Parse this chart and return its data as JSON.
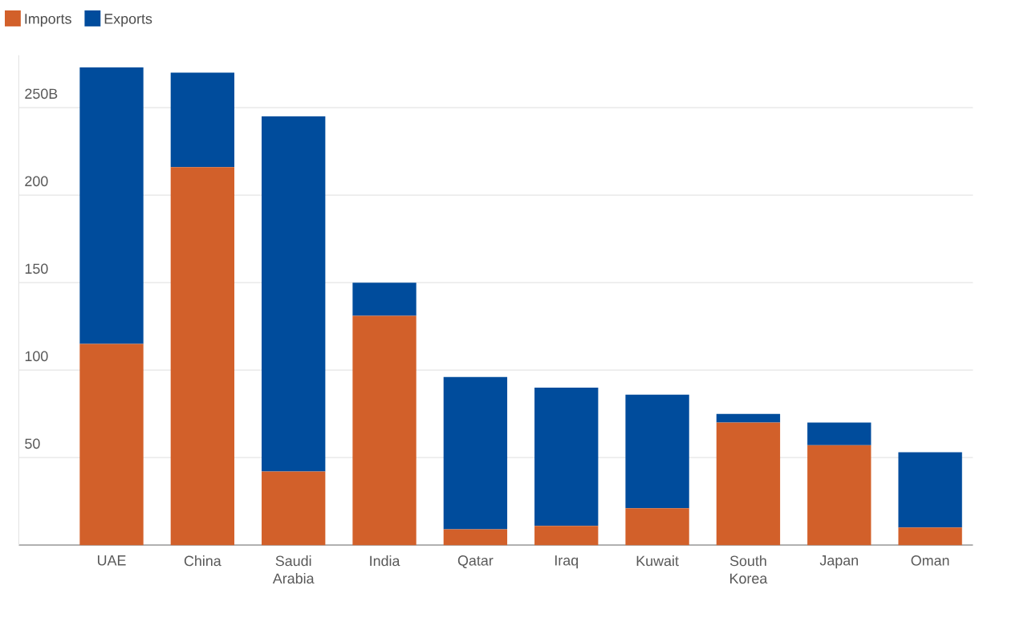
{
  "chart_data": {
    "type": "bar",
    "stacked": true,
    "categories": [
      "UAE",
      "China",
      "Saudi Arabia",
      "India",
      "Qatar",
      "Iraq",
      "Kuwait",
      "South Korea",
      "Japan",
      "Oman"
    ],
    "series": [
      {
        "name": "Imports",
        "color": "#d2602a",
        "values": [
          115,
          216,
          42,
          131,
          9,
          11,
          21,
          70,
          57,
          10
        ]
      },
      {
        "name": "Exports",
        "color": "#004c9c",
        "values": [
          158,
          54,
          203,
          19,
          87,
          79,
          65,
          5,
          13,
          43
        ]
      }
    ],
    "ylim": [
      0,
      280
    ],
    "yticks": [
      50,
      100,
      150,
      200,
      {
        "value": 250,
        "label": "250B"
      }
    ],
    "grid": "y",
    "legend": "top left"
  }
}
